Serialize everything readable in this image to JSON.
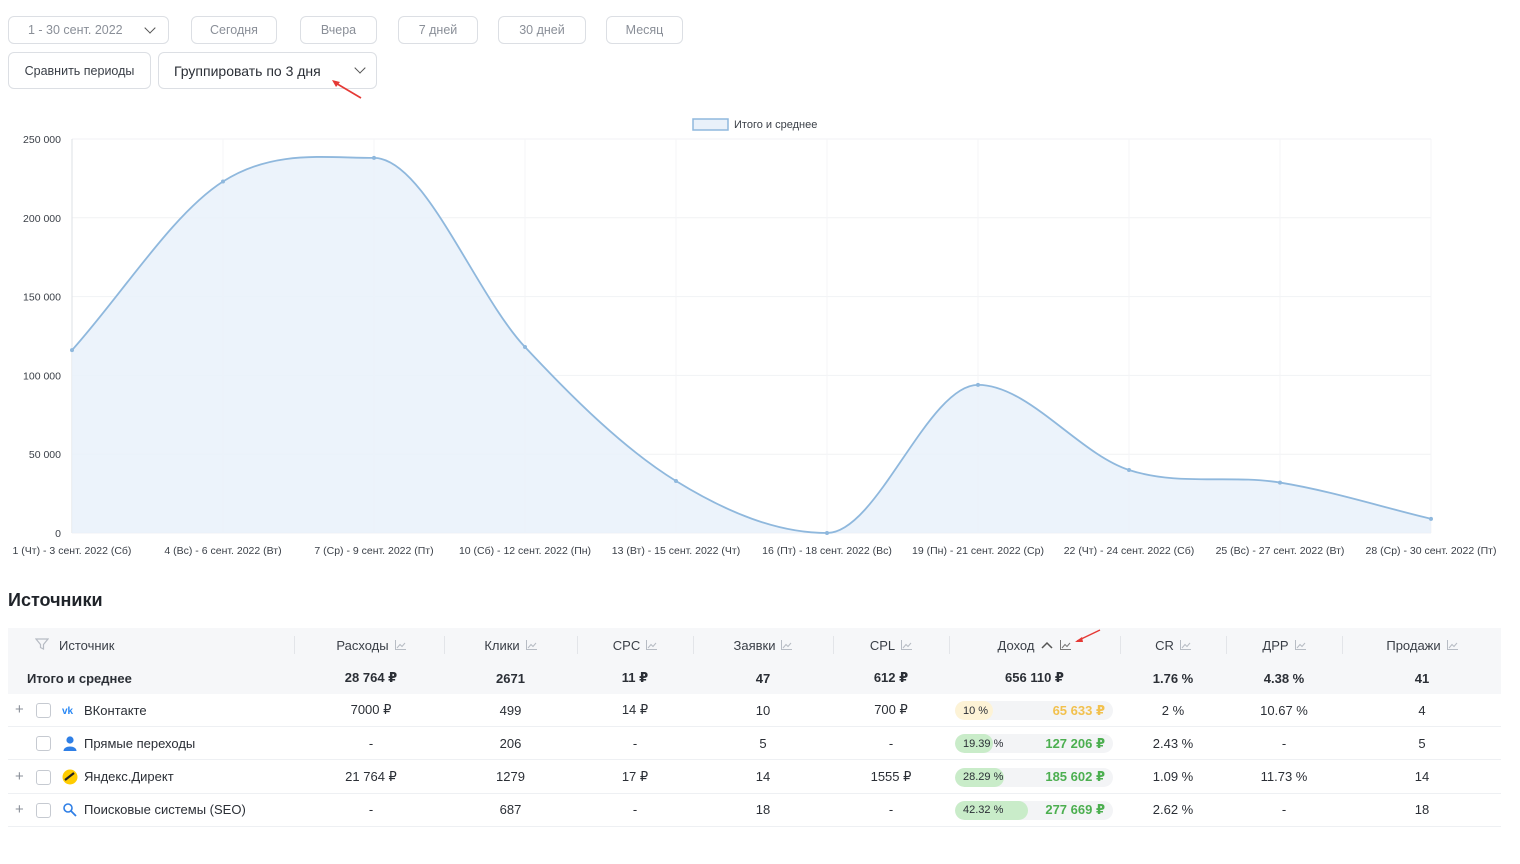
{
  "filters": {
    "date_range": "1 - 30 сент. 2022",
    "presets": [
      "Сегодня",
      "Вчера",
      "7 дней",
      "30 дней",
      "Месяц"
    ],
    "compare_label": "Сравнить периоды",
    "group_label": "Группировать по 3 дня"
  },
  "chart_data": {
    "type": "area",
    "legend": [
      "Итого и среднее"
    ],
    "legend_position": "top-center",
    "categories": [
      "1 (Чт) - 3 сент. 2022 (Сб)",
      "4 (Вс) - 6 сент. 2022 (Вт)",
      "7 (Ср) - 9 сент. 2022 (Пт)",
      "10 (Сб) - 12 сент. 2022 (Пн)",
      "13 (Вт) - 15 сент. 2022 (Чт)",
      "16 (Пт) - 18 сент. 2022 (Вс)",
      "19 (Пн) - 21 сент. 2022 (Ср)",
      "22 (Чт) - 24 сент. 2022 (Сб)",
      "25 (Вс) - 27 сент. 2022 (Вт)",
      "28 (Ср) - 30 сент. 2022 (Пт)"
    ],
    "series": [
      {
        "name": "Итого и среднее",
        "values": [
          116000,
          223000,
          238000,
          118000,
          33000,
          0,
          94000,
          40000,
          32000,
          9000
        ]
      }
    ],
    "y_ticks": [
      "0",
      "50 000",
      "100 000",
      "150 000",
      "200 000",
      "250 000"
    ],
    "ylim": [
      0,
      250000
    ],
    "grid": true,
    "color": "#8fb8dd"
  },
  "sources": {
    "title": "Источники",
    "columns": [
      "Источник",
      "Расходы",
      "Клики",
      "CPC",
      "Заявки",
      "CPL",
      "Доход",
      "CR",
      "ДРР",
      "Продажи"
    ],
    "total": {
      "label": "Итого и среднее",
      "values": [
        "28 764 ₽",
        "2671",
        "11 ₽",
        "47",
        "612 ₽",
        "656 110 ₽",
        "1.76 %",
        "4.38 %",
        "41"
      ]
    },
    "rows": [
      {
        "name": "ВКонтакте",
        "icon": "vk-icon",
        "expandable": true,
        "values": [
          "7000 ₽",
          "499",
          "14 ₽",
          "10",
          "700 ₽"
        ],
        "income_pct": "10 %",
        "income_share": 0.1,
        "income_amount": "65 633 ₽",
        "income_color": "#f2c14e",
        "rest": [
          "2 %",
          "10.67 %",
          "4"
        ]
      },
      {
        "name": "Прямые переходы",
        "icon": "user-icon",
        "expandable": false,
        "values": [
          "-",
          "206",
          "-",
          "5",
          "-"
        ],
        "income_pct": "19.39 %",
        "income_share": 0.1939,
        "income_amount": "127 206 ₽",
        "income_color": "#4caf50",
        "rest": [
          "2.43 %",
          "-",
          "5"
        ]
      },
      {
        "name": "Яндекс.Директ",
        "icon": "yandex-direct-icon",
        "expandable": true,
        "values": [
          "21 764 ₽",
          "1279",
          "17 ₽",
          "14",
          "1555 ₽"
        ],
        "income_pct": "28.29 %",
        "income_share": 0.2829,
        "income_amount": "185 602 ₽",
        "income_color": "#4caf50",
        "rest": [
          "1.09 %",
          "11.73 %",
          "14"
        ]
      },
      {
        "name": "Поисковые системы (SEO)",
        "icon": "search-icon",
        "expandable": true,
        "values": [
          "-",
          "687",
          "-",
          "18",
          "-"
        ],
        "income_pct": "42.32 %",
        "income_share": 0.4232,
        "income_amount": "277 669 ₽",
        "income_color": "#4caf50",
        "rest": [
          "2.62 %",
          "-",
          "18"
        ]
      }
    ]
  }
}
